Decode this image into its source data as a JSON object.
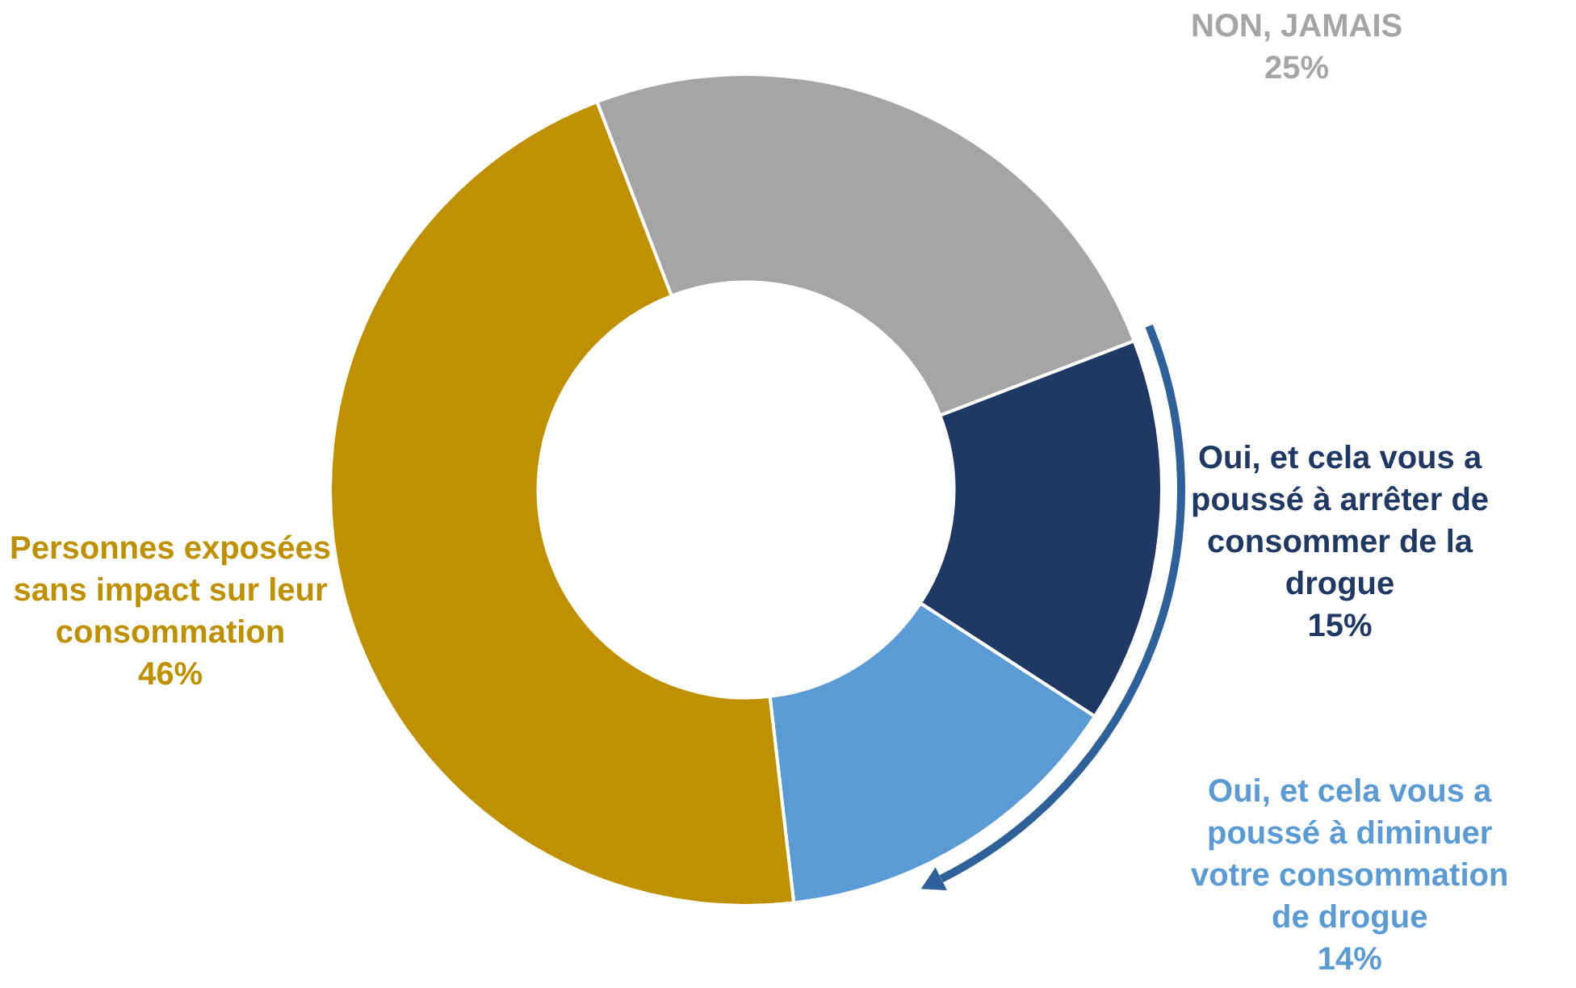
{
  "chart_data": {
    "type": "donut",
    "categories": [
      "NON, JAMAIS",
      "Oui, et cela vous a poussé à arrêter de consommer de la drogue",
      "Oui, et cela vous a poussé à diminuer votre consommation de drogue",
      "Personnes exposées sans impact sur leur consommation"
    ],
    "values": [
      25,
      15,
      14,
      46
    ],
    "value_labels": [
      "25%",
      "15%",
      "14%",
      "46%"
    ],
    "colors": [
      "#a5a5a5",
      "#1f3864",
      "#5b9bd5",
      "#bf9000"
    ],
    "legend": false
  }
}
